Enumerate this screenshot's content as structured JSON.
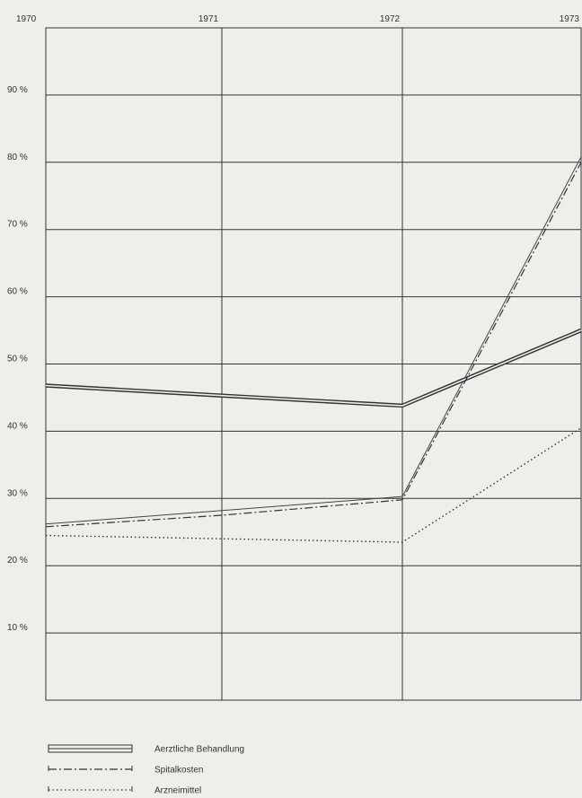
{
  "chart_data": {
    "type": "line",
    "title": "",
    "xlabel": "",
    "ylabel": "",
    "x": [
      "1970",
      "1971",
      "1972",
      "1973"
    ],
    "ylim": [
      0,
      100
    ],
    "y_ticks": [
      "10 %",
      "20 %",
      "30 %",
      "40 %",
      "50 %",
      "60 %",
      "70 %",
      "80 %",
      "90 %"
    ],
    "grid": true,
    "legend_position": "bottom-left",
    "series": [
      {
        "name": "Aerztliche Behandlung",
        "style": "double",
        "values": [
          46.8,
          45.3,
          43.8,
          55.0
        ]
      },
      {
        "name": "Spitalkosten",
        "style": "dash-dot",
        "values": [
          25.8,
          27.5,
          29.8,
          80.0
        ]
      },
      {
        "name": "Arzneimittel",
        "style": "dotted",
        "values": [
          24.5,
          24.0,
          23.5,
          40.5
        ]
      }
    ],
    "extra_line": {
      "values": [
        26.2,
        28.2,
        30.3,
        80.8
      ]
    }
  }
}
